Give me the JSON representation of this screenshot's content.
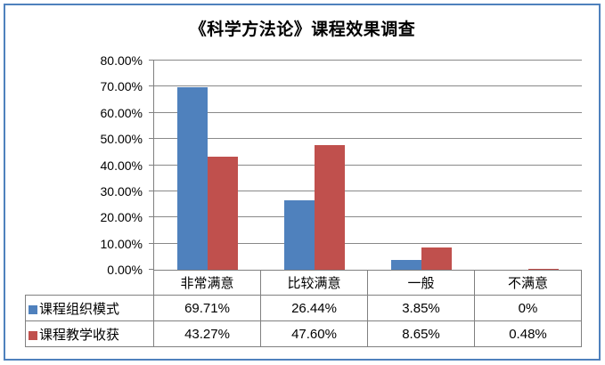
{
  "colors": {
    "frame_border": "#4F81BD",
    "gridline": "#898989",
    "axis": "#808080",
    "table_border": "#808080",
    "series1": "#4F81BD",
    "series2": "#C0504D",
    "text": "#000000",
    "background": "#ffffff"
  },
  "chart_data": {
    "type": "bar",
    "title": "《科学方法论》课程效果调查",
    "categories": [
      "非常满意",
      "比较满意",
      "一般",
      "不满意"
    ],
    "series": [
      {
        "name": "课程组织模式",
        "color": "#4F81BD",
        "values": [
          69.71,
          26.44,
          3.85,
          0
        ],
        "value_labels": [
          "69.71%",
          "26.44%",
          "3.85%",
          "0%"
        ]
      },
      {
        "name": "课程教学收获",
        "color": "#C0504D",
        "values": [
          43.27,
          47.6,
          8.65,
          0.48
        ],
        "value_labels": [
          "43.27%",
          "47.60%",
          "8.65%",
          "0.48%"
        ]
      }
    ],
    "y_axis": {
      "min": 0,
      "max": 80,
      "step": 10,
      "tick_labels": [
        "0.00%",
        "10.00%",
        "20.00%",
        "30.00%",
        "40.00%",
        "50.00%",
        "60.00%",
        "70.00%",
        "80.00%"
      ]
    },
    "legend_position": "data-table-left",
    "gridlines": true,
    "data_table_shown": true
  }
}
